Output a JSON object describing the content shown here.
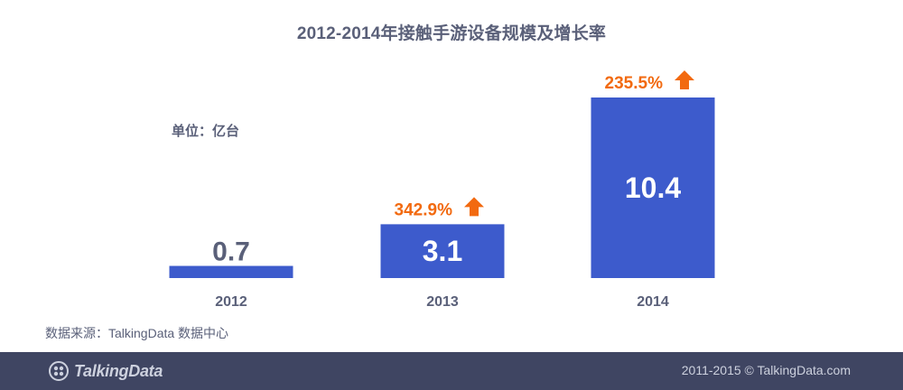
{
  "header": {
    "title": "2012-2014年接触手游设备规模及增长率"
  },
  "unit_label": "单位：亿台",
  "chart_data": {
    "type": "bar",
    "title": "2012-2014年接触手游设备规模及增长率",
    "categories": [
      "2012",
      "2013",
      "2014"
    ],
    "values": [
      0.7,
      3.1,
      10.4
    ],
    "value_labels": [
      "0.7",
      "3.1",
      "10.4"
    ],
    "growth_labels": [
      "",
      "342.9%",
      "235.5%"
    ],
    "ylim": [
      0,
      10.4
    ],
    "grid": false,
    "legend": "none",
    "colors": {
      "bar": "#3d5bcc",
      "growth": "#f26a10",
      "label_outside": "#5a6079",
      "label_inside": "#ffffff",
      "category": "#5a6079"
    }
  },
  "source": "数据来源：TalkingData 数据中心",
  "footer": {
    "logo_text": "TalkingData",
    "logo_icon": "talkingdata-logo-icon",
    "copyright": "2011-2015 © TalkingData.com"
  }
}
